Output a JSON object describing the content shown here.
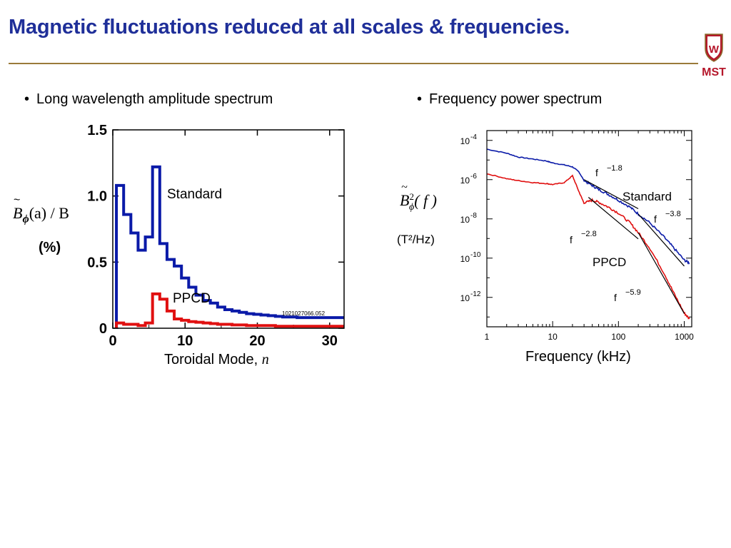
{
  "title": "Magnetic fluctuations reduced at all scales & frequencies.",
  "logo": {
    "text": "MST",
    "crest_letter": "W"
  },
  "bullets": {
    "left": "Long wavelength amplitude spectrum",
    "right": "Frequency power spectrum"
  },
  "colors": {
    "title": "#1f2f99",
    "standard": "#0a1aa8",
    "ppcd": "#e01010",
    "rule": "#9a7a3a",
    "logo": "#b5172b"
  },
  "chart_data": [
    {
      "type": "line",
      "step": true,
      "xlabel_text": "Toroidal Mode, ",
      "xlabel_var": "n",
      "ylabel_main": "B",
      "ylabel_sub": "ϕ",
      "ylabel_arg": "(a) / B",
      "ylabel_unit": "(%)",
      "xlim": [
        0,
        32
      ],
      "ylim": [
        0,
        1.5
      ],
      "xticks": [
        "0",
        "10",
        "20",
        "30"
      ],
      "yticks": [
        "0",
        "0.5",
        "1.0",
        "1.5"
      ],
      "annotation": "1021027066.052",
      "series": [
        {
          "name": "Standard",
          "n": [
            0,
            1,
            2,
            3,
            4,
            5,
            6,
            7,
            8,
            9,
            10,
            11,
            12,
            13,
            14,
            15,
            16,
            17,
            18,
            19,
            20,
            21,
            22,
            23,
            24,
            25,
            26,
            27,
            28,
            29,
            30,
            31,
            32
          ],
          "values": [
            0,
            1.08,
            0.86,
            0.72,
            0.59,
            0.69,
            1.22,
            0.64,
            0.52,
            0.47,
            0.38,
            0.31,
            0.25,
            0.21,
            0.19,
            0.16,
            0.14,
            0.13,
            0.12,
            0.11,
            0.105,
            0.1,
            0.095,
            0.09,
            0.085,
            0.085,
            0.08,
            0.08,
            0.08,
            0.08,
            0.08,
            0.08,
            0.08
          ]
        },
        {
          "name": "PPCD",
          "n": [
            0,
            1,
            2,
            3,
            4,
            5,
            6,
            7,
            8,
            9,
            10,
            11,
            12,
            13,
            14,
            15,
            16,
            17,
            18,
            19,
            20,
            21,
            22,
            23,
            24,
            25,
            26,
            27,
            28,
            29,
            30,
            31,
            32
          ],
          "values": [
            0,
            0.04,
            0.03,
            0.03,
            0.02,
            0.04,
            0.26,
            0.22,
            0.13,
            0.07,
            0.06,
            0.05,
            0.045,
            0.04,
            0.035,
            0.03,
            0.03,
            0.025,
            0.025,
            0.02,
            0.02,
            0.02,
            0.02,
            0.015,
            0.015,
            0.015,
            0.015,
            0.015,
            0.015,
            0.015,
            0.015,
            0.015,
            0.015
          ]
        }
      ]
    },
    {
      "type": "line",
      "log_x": true,
      "log_y": true,
      "xlabel": "Frequency (kHz)",
      "ylabel_main": "B",
      "ylabel_sup": "2",
      "ylabel_sub": "ϕ",
      "ylabel_arg": "( f )",
      "ylabel_unit": "(T²/Hz)",
      "xlim": [
        1,
        1300
      ],
      "ylim_exp": [
        -13.5,
        -3.5
      ],
      "xticks": [
        "1",
        "10",
        "100",
        "1000"
      ],
      "yticks_exp": [
        -4,
        -6,
        -8,
        -10,
        -12
      ],
      "series": [
        {
          "name": "Standard",
          "f_khz": [
            1,
            2,
            3,
            5,
            8,
            10,
            15,
            20,
            25,
            30,
            40,
            50,
            70,
            100,
            150,
            200,
            300,
            500,
            700,
            1000,
            1200
          ],
          "power_log10": [
            -4.45,
            -4.65,
            -4.85,
            -4.95,
            -5.05,
            -5.15,
            -5.25,
            -5.35,
            -5.6,
            -6.05,
            -6.3,
            -6.5,
            -6.75,
            -7.05,
            -7.4,
            -7.75,
            -8.2,
            -8.95,
            -9.5,
            -10.1,
            -10.25
          ]
        },
        {
          "name": "PPCD",
          "f_khz": [
            1,
            2,
            3,
            5,
            8,
            10,
            15,
            20,
            25,
            30,
            40,
            50,
            70,
            100,
            150,
            200,
            300,
            500,
            700,
            1000,
            1200
          ],
          "power_log10": [
            -5.7,
            -5.95,
            -6.05,
            -6.15,
            -6.2,
            -6.25,
            -6.15,
            -5.8,
            -6.6,
            -7.2,
            -7.05,
            -7.15,
            -7.4,
            -7.7,
            -8.2,
            -8.7,
            -9.5,
            -10.8,
            -11.8,
            -12.8,
            -13.1
          ]
        }
      ],
      "fits": [
        {
          "label": "f",
          "exponent": "−1.8"
        },
        {
          "label": "f",
          "exponent": "−3.8"
        },
        {
          "label": "f",
          "exponent": "−2.8"
        },
        {
          "label": "f",
          "exponent": "−5.9"
        }
      ]
    }
  ]
}
